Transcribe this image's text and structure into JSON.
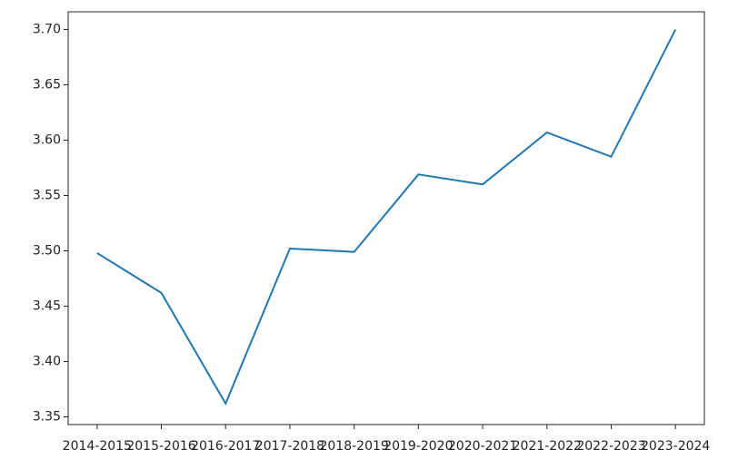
{
  "chart_data": {
    "type": "line",
    "categories": [
      "2014-2015",
      "2015-2016",
      "2016-2017",
      "2017-2018",
      "2018-2019",
      "2019-2020",
      "2020-2021",
      "2021-2022",
      "2022-2023",
      "2023-2024"
    ],
    "values": [
      3.498,
      3.462,
      3.362,
      3.502,
      3.499,
      3.569,
      3.56,
      3.607,
      3.585,
      3.7
    ],
    "color": "#1f77b4",
    "ylim": [
      3.343,
      3.716
    ],
    "yticks": [
      3.35,
      {
        "value": 3.4,
        "label": "3.40"
      },
      3.45,
      {
        "value": 3.5,
        "label": "3.50"
      },
      3.55,
      {
        "value": 3.6,
        "label": "3.60"
      },
      3.65,
      {
        "value": 3.7,
        "label": "3.70"
      }
    ],
    "grid": false
  }
}
